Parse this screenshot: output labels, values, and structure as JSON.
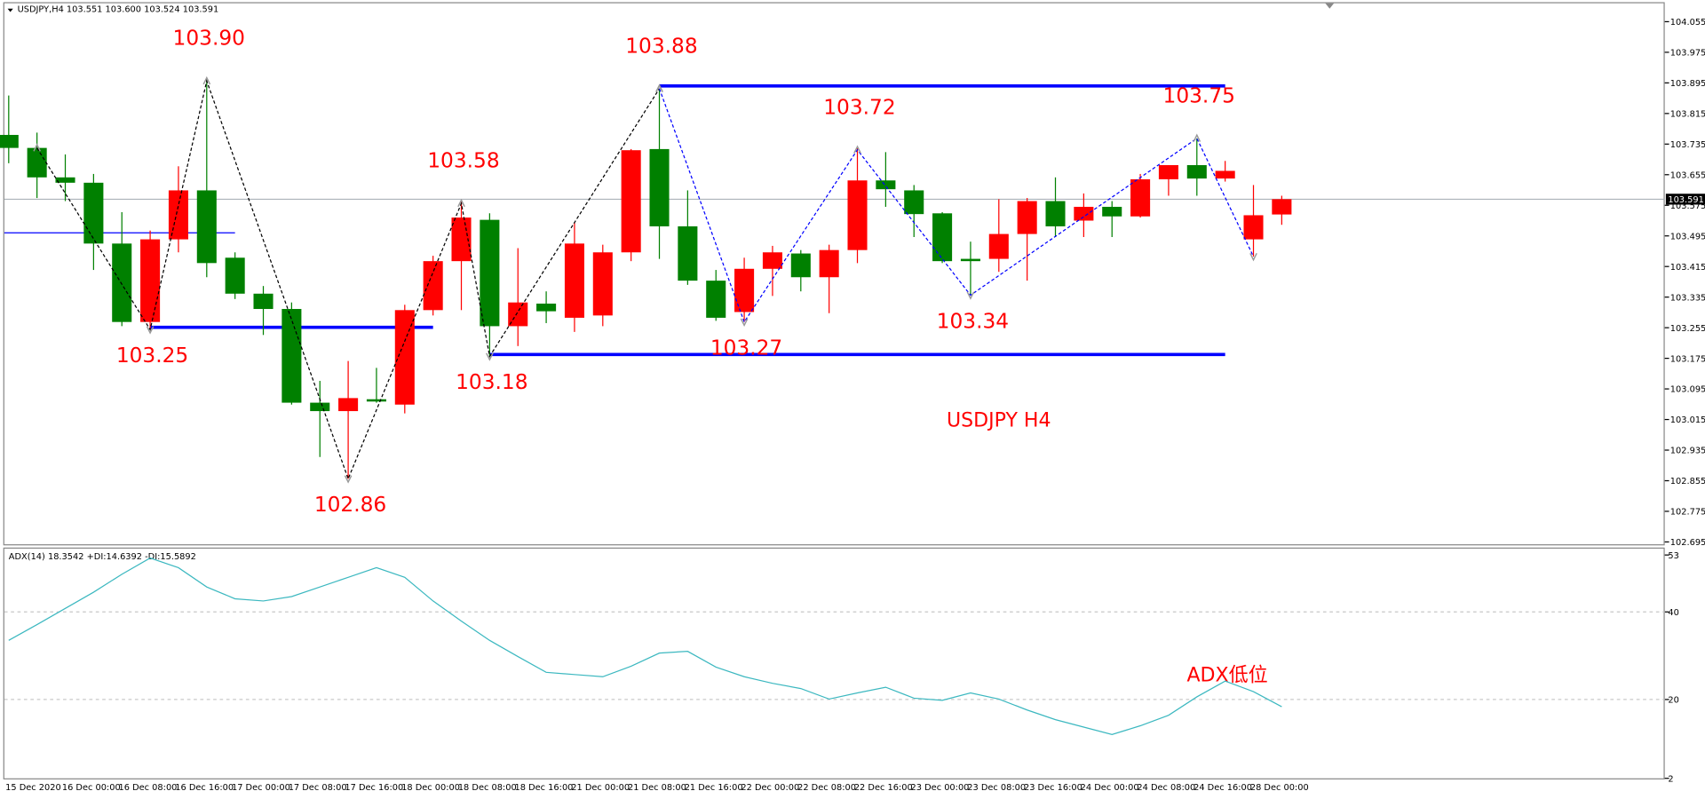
{
  "chart_data": [
    {
      "type": "candlestick",
      "title": "USDJPY,H4  103.551 103.600 103.524 103.591",
      "annotation": "USDJPY H4",
      "categories": [
        "15 Dec 2020",
        null,
        "16 Dec 00:00",
        null,
        "16 Dec 08:00",
        null,
        "16 Dec 16:00",
        null,
        "17 Dec 00:00",
        null,
        "17 Dec 08:00",
        null,
        "17 Dec 16:00",
        null,
        "18 Dec 00:00",
        null,
        "18 Dec 08:00",
        null,
        "18 Dec 16:00",
        null,
        "21 Dec 00:00",
        null,
        "21 Dec 08:00",
        null,
        "21 Dec 16:00",
        null,
        "22 Dec 00:00",
        null,
        "22 Dec 08:00",
        null,
        "22 Dec 16:00",
        null,
        "23 Dec 00:00",
        null,
        "23 Dec 08:00",
        null,
        "23 Dec 16:00",
        null,
        "24 Dec 00:00",
        null,
        "24 Dec 08:00",
        null,
        "24 Dec 16:00",
        null,
        "28 Dec 00:00",
        null
      ],
      "open": [
        103.759,
        103.725,
        103.648,
        103.634,
        103.475,
        103.27,
        103.486,
        103.614,
        103.438,
        103.344,
        103.304,
        103.059,
        103.037,
        103.068,
        103.054,
        103.301,
        103.429,
        103.537,
        103.259,
        103.318,
        103.281,
        103.287,
        103.452,
        103.722,
        103.52,
        103.378,
        103.296,
        103.409,
        103.449,
        103.387,
        103.458,
        103.64,
        103.614,
        103.554,
        103.435,
        103.435,
        103.5,
        103.586,
        103.535,
        103.571,
        103.546,
        103.643,
        103.68,
        103.645,
        103.486,
        103.551
      ],
      "high": [
        103.862,
        103.765,
        103.708,
        103.657,
        103.557,
        103.509,
        103.677,
        103.902,
        103.452,
        103.364,
        103.321,
        103.116,
        103.168,
        103.15,
        103.315,
        103.443,
        103.585,
        103.554,
        103.463,
        103.35,
        103.529,
        103.472,
        103.722,
        103.88,
        103.614,
        103.406,
        103.438,
        103.469,
        103.458,
        103.472,
        103.724,
        103.714,
        103.628,
        103.557,
        103.48,
        103.591,
        103.594,
        103.648,
        103.606,
        103.586,
        103.657,
        103.68,
        103.75,
        103.691,
        103.628,
        103.6
      ],
      "low": [
        103.685,
        103.594,
        103.586,
        103.406,
        103.259,
        103.253,
        103.452,
        103.387,
        103.33,
        103.236,
        103.054,
        102.917,
        102.86,
        103.059,
        103.031,
        103.287,
        103.301,
        103.18,
        103.207,
        103.267,
        103.244,
        103.259,
        103.429,
        103.435,
        103.367,
        103.273,
        103.27,
        103.338,
        103.35,
        103.293,
        103.424,
        103.571,
        103.492,
        103.424,
        103.34,
        103.401,
        103.378,
        103.492,
        103.492,
        103.492,
        103.543,
        103.6,
        103.6,
        103.637,
        103.441,
        103.524
      ],
      "close": [
        103.725,
        103.648,
        103.634,
        103.475,
        103.27,
        103.486,
        103.614,
        103.424,
        103.344,
        103.304,
        103.059,
        103.037,
        103.071,
        103.062,
        103.301,
        103.429,
        103.543,
        103.259,
        103.321,
        103.298,
        103.475,
        103.452,
        103.719,
        103.52,
        103.378,
        103.281,
        103.409,
        103.452,
        103.387,
        103.458,
        103.64,
        103.617,
        103.552,
        103.429,
        103.429,
        103.5,
        103.586,
        103.52,
        103.571,
        103.546,
        103.643,
        103.68,
        103.645,
        103.665,
        103.549,
        103.591
      ],
      "up_color": "#ff0000",
      "down_color": "#008000",
      "last_price": 103.591,
      "ylim": [
        102.686,
        104.106
      ],
      "yticks": [
        104.055,
        103.975,
        103.895,
        103.815,
        103.735,
        103.655,
        103.575,
        103.495,
        103.415,
        103.335,
        103.255,
        103.175,
        103.095,
        103.015,
        102.935,
        102.855,
        102.775,
        102.695
      ],
      "levels": [
        {
          "value": 103.887,
          "from": 23,
          "to": 43,
          "color": "#0000ff",
          "width": 3
        },
        {
          "value": 103.185,
          "from": 17,
          "to": 43,
          "color": "#0000ff",
          "width": 3
        },
        {
          "value": 103.256,
          "from": 5,
          "to": 15,
          "color": "#0000ff",
          "width": 3
        },
        {
          "value": 103.503,
          "from": 0,
          "to": 8,
          "color": "#0000ff",
          "width": 1
        }
      ],
      "zigzag": [
        {
          "color": "#000000",
          "points": [
            {
              "i": 1,
              "value": 103.725
            },
            {
              "i": 5,
              "value": 103.25,
              "label": "103.25"
            },
            {
              "i": 7,
              "value": 103.9,
              "label": "103.90"
            },
            {
              "i": 12,
              "value": 102.86,
              "label": "102.86"
            },
            {
              "i": 16,
              "value": 103.58,
              "label": "103.58"
            },
            {
              "i": 17,
              "value": 103.18,
              "label": "103.18"
            },
            {
              "i": 23,
              "value": 103.88,
              "label": "103.88"
            }
          ]
        },
        {
          "color": "#0000ff",
          "points": [
            {
              "i": 23,
              "value": 103.88
            },
            {
              "i": 26,
              "value": 103.27,
              "label": "103.27"
            },
            {
              "i": 30,
              "value": 103.72,
              "label": "103.72"
            },
            {
              "i": 34,
              "value": 103.34,
              "label": "103.34"
            },
            {
              "i": 42,
              "value": 103.75,
              "label": "103.75"
            },
            {
              "i": 44,
              "value": 103.441
            }
          ]
        }
      ]
    },
    {
      "type": "line",
      "title": "ADX(14) 18.3542 +DI:14.6392 -DI:15.5892",
      "annotation": "ADX低位",
      "color": "#3cb8c0",
      "values": [
        33.5,
        37.1,
        40.8,
        44.5,
        48.6,
        52.3,
        50.1,
        45.7,
        43.0,
        42.5,
        43.5,
        45.7,
        47.9,
        50.1,
        47.9,
        42.5,
        37.9,
        33.5,
        29.8,
        26.2,
        25.7,
        25.2,
        27.6,
        30.6,
        31.0,
        27.4,
        25.2,
        23.7,
        22.5,
        20.1,
        21.5,
        22.8,
        20.3,
        19.8,
        21.5,
        20.1,
        17.6,
        15.4,
        13.7,
        12.0,
        14.0,
        16.4,
        20.6,
        24.2,
        21.8,
        18.35
      ],
      "ylim": [
        2,
        54.7
      ],
      "yticks": [
        53,
        40,
        20,
        2
      ],
      "grid": true
    }
  ]
}
